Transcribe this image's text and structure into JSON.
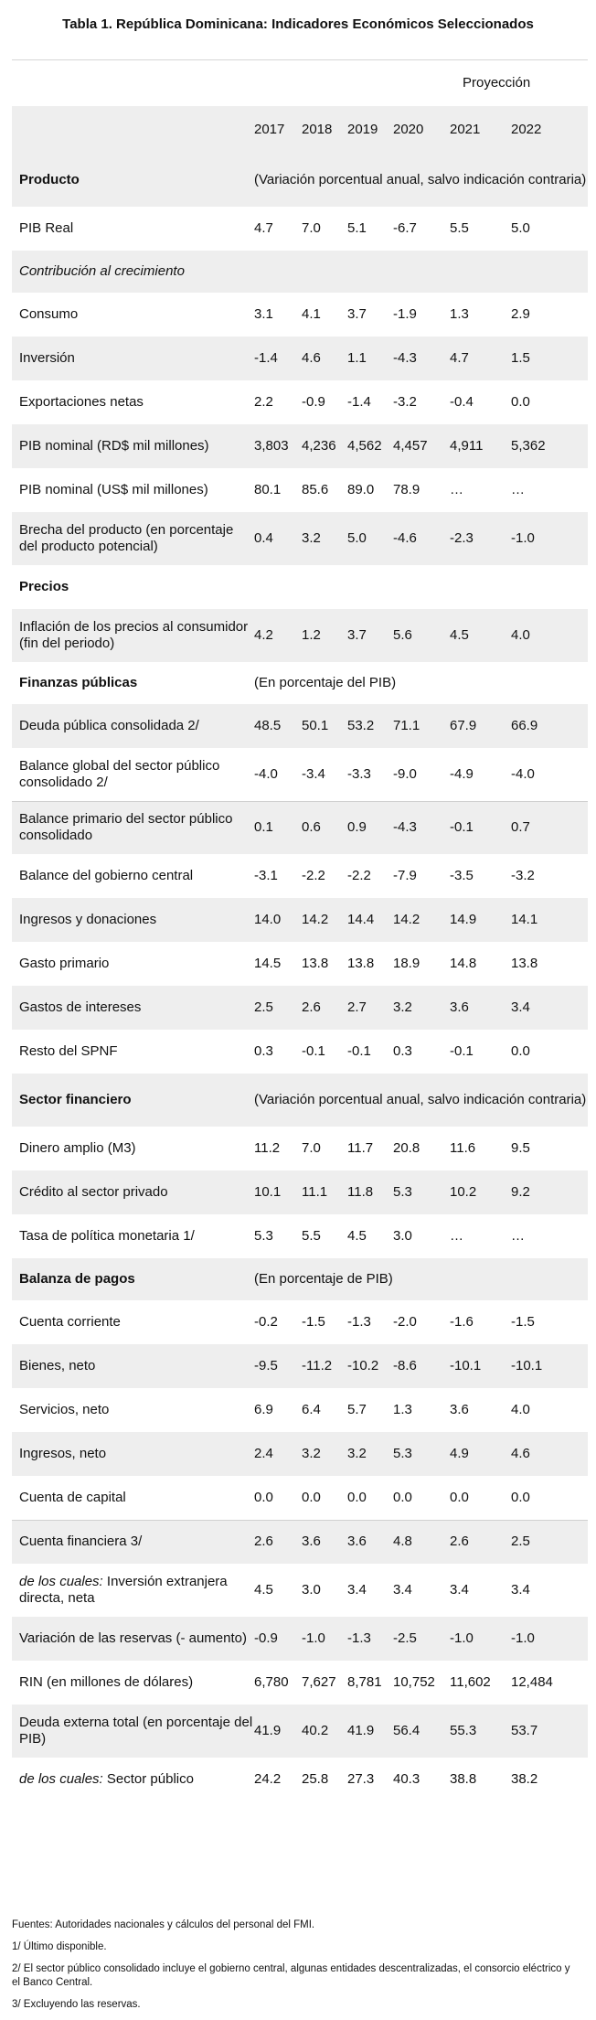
{
  "title": "Tabla 1. República Dominicana: Indicadores Económicos Seleccionados",
  "projection_label": "Proyección",
  "years": [
    "2017",
    "2018",
    "2019",
    "2020",
    "2021",
    "2022"
  ],
  "rows": [
    {
      "type": "section",
      "label": "Producto",
      "note": "(Variación porcentual anual, salvo indicación contraria)",
      "shade": true,
      "h": 58
    },
    {
      "type": "data",
      "label": "PIB Real",
      "values": [
        "4.7",
        "7.0",
        "5.1",
        "-6.7",
        "5.5",
        "5.0"
      ],
      "shade": false,
      "h": 48
    },
    {
      "type": "label",
      "label": "Contribución al crecimiento",
      "italic": true,
      "shade": true,
      "h": 46
    },
    {
      "type": "data",
      "label": "Consumo",
      "values": [
        "3.1",
        "4.1",
        "3.7",
        "-1.9",
        "1.3",
        "2.9"
      ],
      "shade": false,
      "h": 48
    },
    {
      "type": "data",
      "label": "Inversión",
      "values": [
        "-1.4",
        "4.6",
        "1.1",
        "-4.3",
        "4.7",
        "1.5"
      ],
      "shade": true,
      "h": 48
    },
    {
      "type": "data",
      "label": "Exportaciones netas",
      "values": [
        "2.2",
        "-0.9",
        "-1.4",
        "-3.2",
        "-0.4",
        "0.0"
      ],
      "shade": false,
      "h": 48
    },
    {
      "type": "data",
      "label": "PIB nominal (RD$ mil millones)",
      "values": [
        "3,803",
        "4,236",
        "4,562",
        "4,457",
        "4,911",
        "5,362"
      ],
      "shade": true,
      "h": 48
    },
    {
      "type": "data",
      "label": "PIB nominal (US$ mil millones)",
      "values": [
        "80.1",
        "85.6",
        "89.0",
        "78.9",
        "…",
        "…"
      ],
      "shade": false,
      "h": 48
    },
    {
      "type": "data",
      "label": "Brecha del producto (en porcentaje del producto potencial)",
      "values": [
        "0.4",
        "3.2",
        "5.0",
        "-4.6",
        "-2.3",
        "-1.0"
      ],
      "shade": true,
      "h": 58
    },
    {
      "type": "section",
      "label": "Precios",
      "note": "",
      "shade": false,
      "h": 48
    },
    {
      "type": "data",
      "label": "Inflación de los precios al consumidor (fin del periodo)",
      "values": [
        "4.2",
        "1.2",
        "3.7",
        "5.6",
        "4.5",
        "4.0"
      ],
      "shade": true,
      "h": 58
    },
    {
      "type": "section",
      "label": "Finanzas públicas",
      "note": "(En porcentaje del PIB)",
      "shade": false,
      "h": 46
    },
    {
      "type": "data",
      "label": "Deuda pública consolidada 2/",
      "values": [
        "48.5",
        "50.1",
        "53.2",
        "71.1",
        "67.9",
        "66.9"
      ],
      "shade": true,
      "h": 48
    },
    {
      "type": "data",
      "label": "Balance global del sector público consolidado 2/",
      "values": [
        "-4.0",
        "-3.4",
        "-3.3",
        "-9.0",
        "-4.9",
        "-4.0"
      ],
      "shade": false,
      "h": 58
    },
    {
      "type": "data",
      "label": "Balance primario del sector público consolidado",
      "values": [
        "0.1",
        "0.6",
        "0.9",
        "-4.3",
        "-0.1",
        "0.7"
      ],
      "shade": true,
      "h": 58,
      "sep": true
    },
    {
      "type": "data",
      "label": "Balance del gobierno central",
      "values": [
        "-3.1",
        "-2.2",
        "-2.2",
        "-7.9",
        "-3.5",
        "-3.2"
      ],
      "shade": false,
      "h": 48
    },
    {
      "type": "data",
      "label": "Ingresos y donaciones",
      "values": [
        "14.0",
        "14.2",
        "14.4",
        "14.2",
        "14.9",
        "14.1"
      ],
      "shade": true,
      "h": 48
    },
    {
      "type": "data",
      "label": "Gasto primario",
      "values": [
        "14.5",
        "13.8",
        "13.8",
        "18.9",
        "14.8",
        "13.8"
      ],
      "shade": false,
      "h": 48
    },
    {
      "type": "data",
      "label": "Gastos de intereses",
      "values": [
        "2.5",
        "2.6",
        "2.7",
        "3.2",
        "3.6",
        "3.4"
      ],
      "shade": true,
      "h": 48
    },
    {
      "type": "data",
      "label": "Resto del SPNF",
      "values": [
        "0.3",
        "-0.1",
        "-0.1",
        "0.3",
        "-0.1",
        "0.0"
      ],
      "shade": false,
      "h": 48
    },
    {
      "type": "section",
      "label": "Sector financiero",
      "note": "(Variación porcentual anual, salvo indicación contraria)",
      "shade": true,
      "h": 58
    },
    {
      "type": "data",
      "label": "Dinero amplio (M3)",
      "values": [
        "11.2",
        "7.0",
        "11.7",
        "20.8",
        "11.6",
        "9.5"
      ],
      "shade": false,
      "h": 48
    },
    {
      "type": "data",
      "label": "Crédito al sector privado",
      "values": [
        "10.1",
        "11.1",
        "11.8",
        "5.3",
        "10.2",
        "9.2"
      ],
      "shade": true,
      "h": 48
    },
    {
      "type": "data",
      "label": "Tasa de política monetaria 1/",
      "values": [
        "5.3",
        "5.5",
        "4.5",
        "3.0",
        "…",
        "…"
      ],
      "shade": false,
      "h": 48
    },
    {
      "type": "section",
      "label": "Balanza de pagos",
      "note": "(En porcentaje de PIB)",
      "shade": true,
      "h": 46
    },
    {
      "type": "data",
      "label": "Cuenta corriente",
      "values": [
        "-0.2",
        "-1.5",
        "-1.3",
        "-2.0",
        "-1.6",
        "-1.5"
      ],
      "shade": false,
      "h": 48
    },
    {
      "type": "data",
      "label": "Bienes, neto",
      "values": [
        "-9.5",
        "-11.2",
        "-10.2",
        "-8.6",
        "-10.1",
        "-10.1"
      ],
      "shade": true,
      "h": 48
    },
    {
      "type": "data",
      "label": "Servicios, neto",
      "values": [
        "6.9",
        "6.4",
        "5.7",
        "1.3",
        "3.6",
        "4.0"
      ],
      "shade": false,
      "h": 48
    },
    {
      "type": "data",
      "label": "Ingresos, neto",
      "values": [
        "2.4",
        "3.2",
        "3.2",
        "5.3",
        "4.9",
        "4.6"
      ],
      "shade": true,
      "h": 48
    },
    {
      "type": "data",
      "label": "Cuenta de capital",
      "values": [
        "0.0",
        "0.0",
        "0.0",
        "0.0",
        "0.0",
        "0.0"
      ],
      "shade": false,
      "h": 48
    },
    {
      "type": "data",
      "label": "Cuenta financiera 3/",
      "values": [
        "2.6",
        "3.6",
        "3.6",
        "4.8",
        "2.6",
        "2.5"
      ],
      "shade": true,
      "h": 48,
      "sep": true
    },
    {
      "type": "data",
      "label_italic": "de los cuales:",
      "label": " Inversión extranjera directa, neta",
      "values": [
        "4.5",
        "3.0",
        "3.4",
        "3.4",
        "3.4",
        "3.4"
      ],
      "shade": false,
      "h": 58
    },
    {
      "type": "data",
      "label": "Variación de las reservas (- aumento)",
      "values": [
        "-0.9",
        "-1.0",
        "-1.3",
        "-2.5",
        "-1.0",
        "-1.0"
      ],
      "shade": true,
      "h": 48
    },
    {
      "type": "data",
      "label": "RIN (en millones de dólares)",
      "values": [
        "6,780",
        "7,627",
        "8,781",
        "10,752",
        "11,602",
        "12,484"
      ],
      "shade": false,
      "h": 48
    },
    {
      "type": "data",
      "label": "Deuda externa total (en porcentaje del PIB)",
      "values": [
        "41.9",
        "40.2",
        "41.9",
        "56.4",
        "55.3",
        "53.7"
      ],
      "shade": true,
      "h": 58
    },
    {
      "type": "data",
      "label_italic": "de los cuales:",
      "label": " Sector público",
      "values": [
        "24.2",
        "25.8",
        "27.3",
        "40.3",
        "38.8",
        "38.2"
      ],
      "shade": false,
      "h": 48
    }
  ],
  "notes": [
    "Fuentes: Autoridades nacionales y cálculos del personal del FMI.",
    "1/ Último disponible.",
    "2/ El sector público consolidado incluye el gobierno central, algunas entidades descentralizadas, el consorcio eléctrico y el Banco Central.",
    "3/ Excluyendo las reservas."
  ]
}
